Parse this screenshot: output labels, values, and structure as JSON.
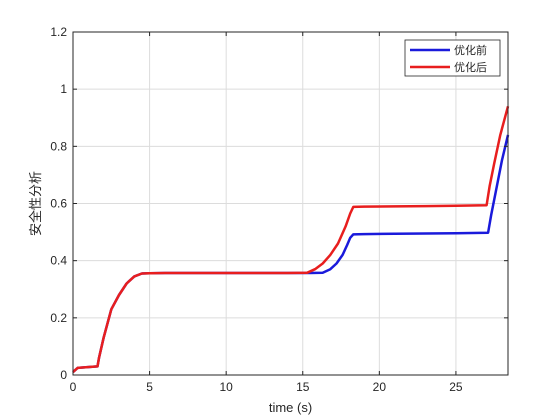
{
  "chart_data": {
    "type": "line",
    "title": "",
    "xlabel": "time (s)",
    "ylabel": "安全性分析",
    "xlim": [
      0,
      28.4
    ],
    "ylim": [
      0,
      1.2
    ],
    "xticks": [
      0,
      5,
      10,
      15,
      20,
      25
    ],
    "yticks": [
      0,
      0.2,
      0.4,
      0.6,
      0.8,
      1,
      1.2
    ],
    "xtick_labels": [
      "0",
      "5",
      "10",
      "15",
      "20",
      "25"
    ],
    "ytick_labels": [
      "0",
      "0.2",
      "0.4",
      "0.6",
      "0.8",
      "1",
      "1.2"
    ],
    "grid": true,
    "legend_position": "top-right",
    "series": [
      {
        "name": "优化前",
        "color": "#1a1adb",
        "x": [
          0,
          0.3,
          1.6,
          1.7,
          2.0,
          2.5,
          3.0,
          3.5,
          4.0,
          4.5,
          5.0,
          6,
          8,
          10,
          12,
          14,
          15.5,
          16.3,
          16.8,
          17.2,
          17.6,
          17.9,
          18.1,
          18.3,
          19,
          21,
          23,
          25,
          27.1,
          27.3,
          27.6,
          28.0,
          28.4
        ],
        "y": [
          0.01,
          0.025,
          0.03,
          0.06,
          0.13,
          0.23,
          0.28,
          0.32,
          0.345,
          0.355,
          0.356,
          0.357,
          0.357,
          0.357,
          0.357,
          0.357,
          0.357,
          0.358,
          0.37,
          0.39,
          0.42,
          0.455,
          0.48,
          0.492,
          0.493,
          0.494,
          0.495,
          0.496,
          0.498,
          0.56,
          0.64,
          0.75,
          0.84
        ]
      },
      {
        "name": "优化后",
        "color": "#e81e1e",
        "x": [
          0,
          0.3,
          1.6,
          1.7,
          2.0,
          2.5,
          3.0,
          3.5,
          4.0,
          4.5,
          5.0,
          6,
          8,
          10,
          12,
          14,
          15.3,
          15.8,
          16.3,
          16.8,
          17.3,
          17.8,
          18.1,
          18.3,
          19,
          21,
          23,
          25,
          27.0,
          27.2,
          27.5,
          27.9,
          28.4
        ],
        "y": [
          0.01,
          0.025,
          0.03,
          0.06,
          0.13,
          0.23,
          0.28,
          0.32,
          0.345,
          0.355,
          0.356,
          0.357,
          0.357,
          0.357,
          0.357,
          0.357,
          0.358,
          0.37,
          0.39,
          0.42,
          0.46,
          0.52,
          0.565,
          0.588,
          0.589,
          0.59,
          0.591,
          0.592,
          0.594,
          0.66,
          0.74,
          0.84,
          0.94
        ]
      }
    ]
  }
}
